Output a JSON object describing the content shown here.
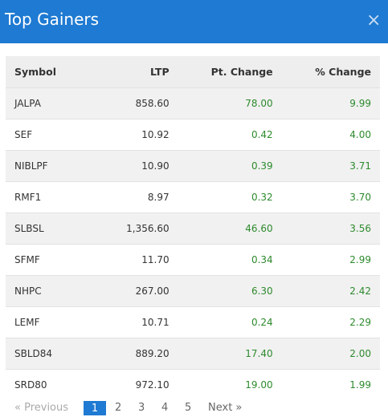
{
  "modal": {
    "title": "Top Gainers",
    "close_glyph": "×"
  },
  "table": {
    "headers": [
      "Symbol",
      "LTP",
      "Pt. Change",
      "% Change"
    ],
    "rows": [
      {
        "symbol": "JALPA",
        "ltp": "858.60",
        "pt_change": "78.00",
        "pct_change": "9.99"
      },
      {
        "symbol": "SEF",
        "ltp": "10.92",
        "pt_change": "0.42",
        "pct_change": "4.00"
      },
      {
        "symbol": "NIBLPF",
        "ltp": "10.90",
        "pt_change": "0.39",
        "pct_change": "3.71"
      },
      {
        "symbol": "RMF1",
        "ltp": "8.97",
        "pt_change": "0.32",
        "pct_change": "3.70"
      },
      {
        "symbol": "SLBSL",
        "ltp": "1,356.60",
        "pt_change": "46.60",
        "pct_change": "3.56"
      },
      {
        "symbol": "SFMF",
        "ltp": "11.70",
        "pt_change": "0.34",
        "pct_change": "2.99"
      },
      {
        "symbol": "NHPC",
        "ltp": "267.00",
        "pt_change": "6.30",
        "pct_change": "2.42"
      },
      {
        "symbol": "LEMF",
        "ltp": "10.71",
        "pt_change": "0.24",
        "pct_change": "2.29"
      },
      {
        "symbol": "SBLD84",
        "ltp": "889.20",
        "pt_change": "17.40",
        "pct_change": "2.00"
      },
      {
        "symbol": "SRD80",
        "ltp": "972.10",
        "pt_change": "19.00",
        "pct_change": "1.99"
      }
    ]
  },
  "pagination": {
    "prev": "« Previous",
    "pages": [
      "1",
      "2",
      "3",
      "4",
      "5"
    ],
    "current": "1",
    "next": "Next »"
  },
  "colors": {
    "header_bg": "#1e7ad2",
    "positive": "#2d8a2d"
  }
}
